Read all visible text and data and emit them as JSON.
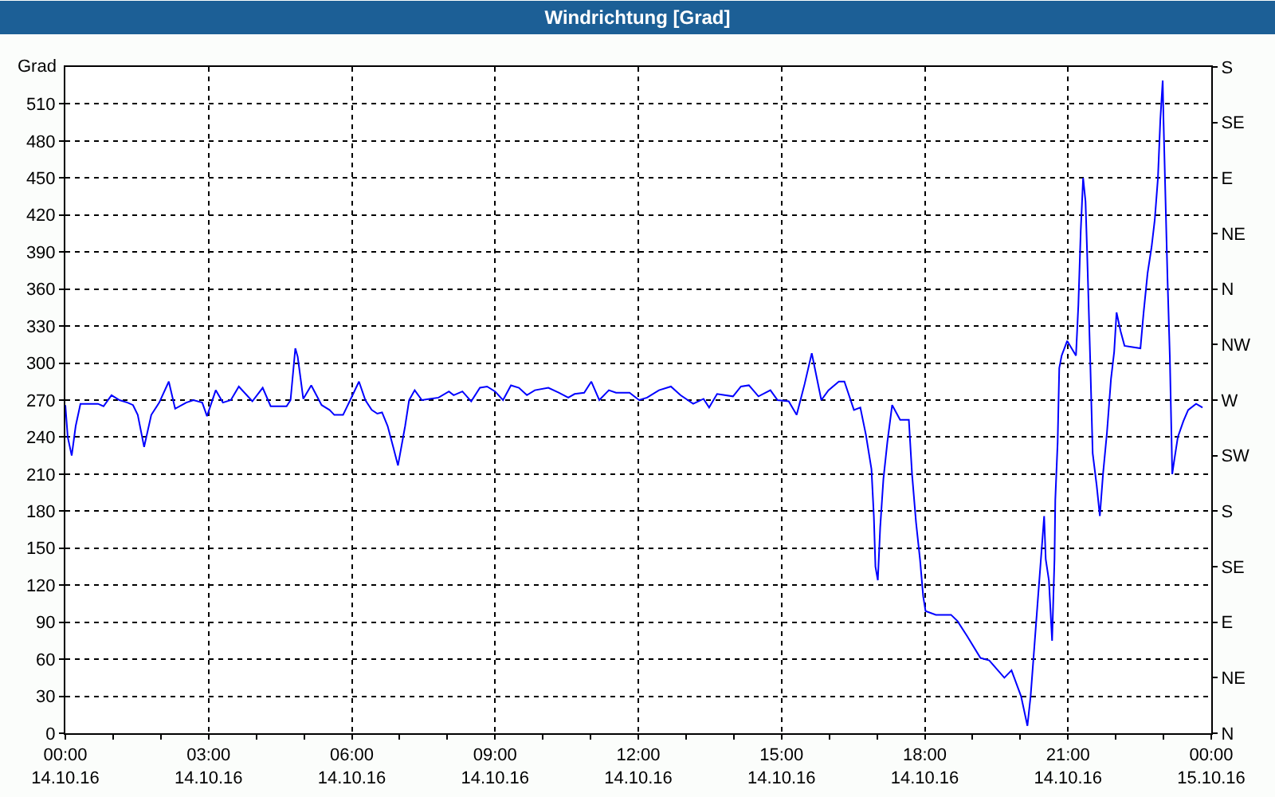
{
  "chart_data": {
    "type": "line",
    "title": "Windrichtung [Grad]",
    "ylabel": "Grad",
    "x": [
      "--10-14T00:00",
      "--10-14T00:03",
      "--10-14T00:08",
      "--10-14T00:13",
      "--10-14T00:19",
      "--10-14T00:41",
      "--10-14T00:48",
      "--10-14T00:58",
      "--10-14T01:08",
      "--10-14T01:18",
      "--10-14T01:25",
      "--10-14T01:31",
      "--10-14T01:39",
      "--10-14T01:48",
      "--10-14T01:58",
      "--10-14T02:10",
      "--10-14T02:18",
      "--10-14T02:32",
      "--10-14T02:41",
      "--10-14T02:52",
      "--10-14T02:58",
      "--10-14T03:09",
      "--10-14T03:18",
      "--10-14T03:28",
      "--10-14T03:38",
      "--10-14T03:55",
      "--10-14T04:08",
      "--10-14T04:18",
      "--10-14T04:38",
      "--10-14T04:43",
      "--10-14T04:49",
      "--10-14T04:52",
      "--10-14T04:59",
      "--10-14T05:09",
      "--10-14T05:22",
      "--10-14T05:32",
      "--10-14T05:38",
      "--10-14T05:49",
      "--10-14T05:58",
      "--10-14T06:09",
      "--10-14T06:17",
      "--10-14T06:25",
      "--10-14T06:32",
      "--10-14T06:38",
      "--10-14T06:45",
      "--10-14T06:52",
      "--10-14T06:58",
      "--10-14T07:07",
      "--10-14T07:12",
      "--10-14T07:19",
      "--10-14T07:28",
      "--10-14T07:38",
      "--10-14T07:49",
      "--10-14T08:02",
      "--10-14T08:08",
      "--10-14T08:19",
      "--10-14T08:30",
      "--10-14T08:41",
      "--10-14T08:50",
      "--10-14T09:00",
      "--10-14T09:10",
      "--10-14T09:20",
      "--10-14T09:30",
      "--10-14T09:40",
      "--10-14T09:50",
      "--10-14T10:07",
      "--10-14T10:20",
      "--10-14T10:32",
      "--10-14T10:40",
      "--10-14T10:52",
      "--10-14T11:01",
      "--10-14T11:11",
      "--10-14T11:23",
      "--10-14T11:32",
      "--10-14T11:49",
      "--10-14T12:01",
      "--10-14T12:11",
      "--10-14T12:26",
      "--10-14T12:41",
      "--10-14T12:53",
      "--10-14T13:09",
      "--10-14T13:22",
      "--10-14T13:29",
      "--10-14T13:39",
      "--10-14T13:59",
      "--10-14T14:09",
      "--10-14T14:19",
      "--10-14T14:31",
      "--10-14T14:46",
      "--10-14T14:55",
      "--10-14T15:09",
      "--10-14T15:19",
      "--10-14T15:29",
      "--10-14T15:38",
      "--10-14T15:50",
      "--10-14T15:59",
      "--10-14T16:12",
      "--10-14T16:19",
      "--10-14T16:31",
      "--10-14T16:39",
      "--10-14T16:46",
      "--10-14T16:53",
      "--10-14T16:56",
      "--10-14T16:58",
      "--10-14T17:01",
      "--10-14T17:04",
      "--10-14T17:08",
      "--10-14T17:13",
      "--10-14T17:19",
      "--10-14T17:29",
      "--10-14T17:40",
      "--10-14T17:44",
      "--10-14T17:49",
      "--10-14T17:54",
      "--10-14T17:58",
      "--10-14T18:01",
      "--10-14T18:14",
      "--10-14T18:33",
      "--10-14T18:41",
      "--10-14T18:53",
      "--10-14T19:10",
      "--10-14T19:21",
      "--10-14T19:40",
      "--10-14T19:49",
      "--10-14T20:01",
      "--10-14T20:09",
      "--10-14T20:13",
      "--10-14T20:17",
      "--10-14T20:23",
      "--10-14T20:27",
      "--10-14T20:30",
      "--10-14T20:32",
      "--10-14T20:36",
      "--10-14T20:40",
      "--10-14T20:43",
      "--10-14T20:44",
      "--10-14T20:47",
      "--10-14T20:49",
      "--10-14T20:52",
      "--10-14T20:59",
      "--10-14T21:10",
      "--10-14T21:13",
      "--10-14T21:16",
      "--10-14T21:19",
      "--10-14T21:22",
      "--10-14T21:24",
      "--10-14T21:28",
      "--10-14T21:31",
      "--10-14T21:36",
      "--10-14T21:40",
      "--10-14T21:44",
      "--10-14T21:49",
      "--10-14T21:54",
      "--10-14T21:58",
      "--10-14T22:01",
      "--10-14T22:06",
      "--10-14T22:11",
      "--10-14T22:21",
      "--10-14T22:31",
      "--10-14T22:35",
      "--10-14T22:40",
      "--10-14T22:45",
      "--10-14T22:49",
      "--10-14T22:53",
      "--10-14T22:56",
      "--10-14T22:59",
      "--10-14T23:00",
      "--10-14T23:05",
      "--10-14T23:08",
      "--10-14T23:11",
      "--10-14T23:13",
      "--10-14T23:18",
      "--10-14T23:25",
      "--10-14T23:31",
      "--10-14T23:41",
      "--10-14T23:49"
    ],
    "series": [
      {
        "color": "#0000ff",
        "values": [
          266,
          240,
          225,
          249,
          267,
          267,
          265,
          274,
          270,
          268,
          266,
          258,
          232,
          258,
          268,
          285,
          263,
          268,
          270,
          268,
          257,
          278,
          268,
          270,
          281,
          269,
          280,
          265,
          265,
          270,
          312,
          305,
          271,
          282,
          266,
          262,
          258,
          258,
          270,
          285,
          270,
          262,
          259,
          260,
          249,
          232,
          217,
          249,
          270,
          278,
          270,
          271,
          272,
          277,
          274,
          277,
          269,
          280,
          281,
          277,
          270,
          282,
          280,
          274,
          278,
          280,
          276,
          272,
          275,
          276,
          285,
          270,
          278,
          276,
          276,
          270,
          272,
          278,
          281,
          274,
          267,
          271,
          264,
          275,
          273,
          281,
          282,
          273,
          278,
          270,
          269,
          258,
          283,
          308,
          270,
          278,
          285,
          285,
          262,
          264,
          242,
          214,
          176,
          135,
          124,
          167,
          206,
          236,
          266,
          254,
          254,
          210,
          171,
          141,
          111,
          99,
          96,
          96,
          91,
          79,
          61,
          59,
          45,
          51,
          30,
          6,
          30,
          64,
          116,
          150,
          176,
          141,
          124,
          75,
          141,
          189,
          236,
          296,
          306,
          318,
          306,
          347,
          407,
          450,
          431,
          390,
          300,
          227,
          201,
          176,
          210,
          244,
          287,
          309,
          341,
          326,
          314,
          313,
          312,
          341,
          373,
          394,
          416,
          450,
          497,
          529,
          497,
          369,
          304,
          210,
          219,
          240,
          253,
          262,
          267,
          264
        ]
      }
    ],
    "xlim": [
      "--10-14T00:00",
      "--10-15T00:00"
    ],
    "xticks": [
      {
        "value": "--10-14T00:00",
        "label": "00:00\n14.10.16"
      },
      {
        "value": "--10-14T01:00",
        "label": null
      },
      {
        "value": "--10-14T02:00",
        "label": null
      },
      {
        "value": "--10-14T03:00",
        "label": "03:00\n14.10.16"
      },
      {
        "value": "--10-14T04:00",
        "label": null
      },
      {
        "value": "--10-14T05:00",
        "label": null
      },
      {
        "value": "--10-14T06:00",
        "label": "06:00\n14.10.16"
      },
      {
        "value": "--10-14T07:00",
        "label": null
      },
      {
        "value": "--10-14T08:00",
        "label": null
      },
      {
        "value": "--10-14T09:00",
        "label": "09:00\n14.10.16"
      },
      {
        "value": "--10-14T10:00",
        "label": null
      },
      {
        "value": "--10-14T11:00",
        "label": null
      },
      {
        "value": "--10-14T12:00",
        "label": "12:00\n14.10.16"
      },
      {
        "value": "--10-14T13:00",
        "label": null
      },
      {
        "value": "--10-14T14:00",
        "label": null
      },
      {
        "value": "--10-14T15:00",
        "label": "15:00\n14.10.16"
      },
      {
        "value": "--10-14T16:00",
        "label": null
      },
      {
        "value": "--10-14T17:00",
        "label": null
      },
      {
        "value": "--10-14T18:00",
        "label": "18:00\n14.10.16"
      },
      {
        "value": "--10-14T19:00",
        "label": null
      },
      {
        "value": "--10-14T20:00",
        "label": null
      },
      {
        "value": "--10-14T21:00",
        "label": "21:00\n14.10.16"
      },
      {
        "value": "--10-14T22:00",
        "label": null
      },
      {
        "value": "--10-14T23:00",
        "label": null
      },
      {
        "value": "--10-15T00:00",
        "label": "00:00\n15.10.16"
      }
    ],
    "ylim": [
      0,
      540
    ],
    "yticks": [
      0,
      30,
      60,
      90,
      120,
      150,
      180,
      210,
      240,
      270,
      300,
      330,
      360,
      390,
      420,
      450,
      480,
      510
    ],
    "y2_categories": [
      "S",
      "SE",
      "E",
      "NE",
      "N",
      "NW",
      "W",
      "SW",
      "S",
      "SE",
      "E",
      "NE",
      "N"
    ],
    "grid": true
  }
}
